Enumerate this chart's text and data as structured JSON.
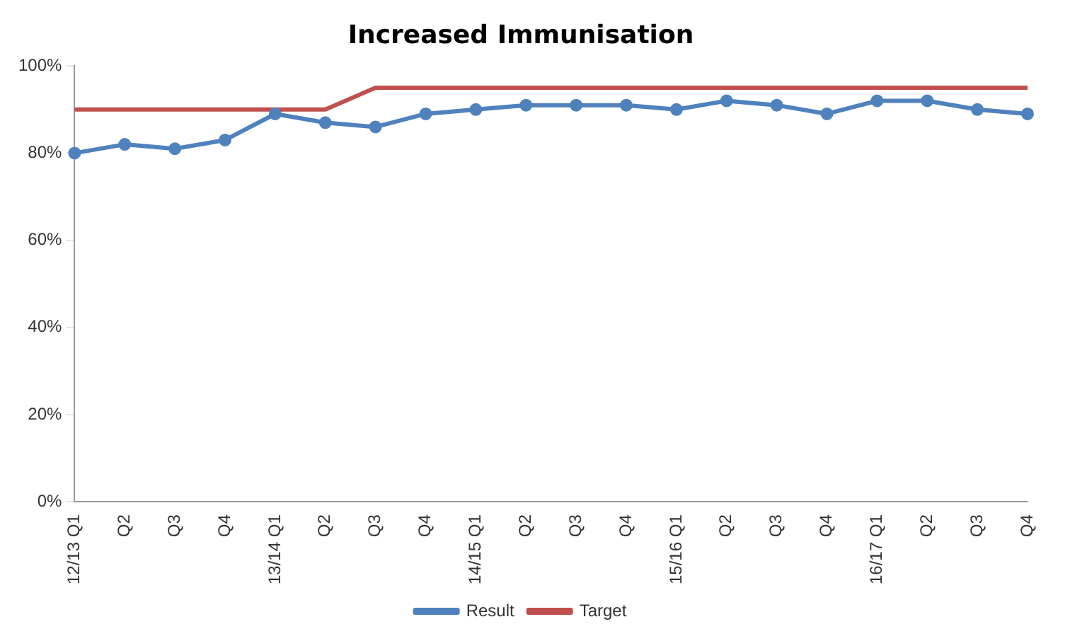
{
  "chart_data": {
    "type": "line",
    "title": "Increased Immunisation",
    "categories": [
      "12/13 Q1",
      "Q2",
      "Q3",
      "Q4",
      "13/14 Q1",
      "Q2",
      "Q3",
      "Q4",
      "14/15 Q1",
      "Q2",
      "Q3",
      "Q4",
      "15/16 Q1",
      "Q2",
      "Q3",
      "Q4",
      "16/17 Q1",
      "Q2",
      "Q3",
      "Q4"
    ],
    "series": [
      {
        "name": "Result",
        "color": "#4f81bd",
        "marker": "circle",
        "values": [
          80,
          82,
          81,
          83,
          89,
          87,
          86,
          89,
          90,
          91,
          91,
          91,
          90,
          92,
          91,
          89,
          92,
          92,
          90,
          89
        ]
      },
      {
        "name": "Target",
        "color": "#c0504d",
        "marker": "none",
        "values": [
          90,
          90,
          90,
          90,
          90,
          90,
          95,
          95,
          95,
          95,
          95,
          95,
          95,
          95,
          95,
          95,
          95,
          95,
          95,
          95
        ]
      }
    ],
    "ylim": [
      0,
      100
    ],
    "yticks": [
      {
        "value": 0,
        "label": "0%"
      },
      {
        "value": 20,
        "label": "20%"
      },
      {
        "value": 40,
        "label": "40%"
      },
      {
        "value": 60,
        "label": "60%"
      },
      {
        "value": 80,
        "label": "80%"
      },
      {
        "value": 100,
        "label": "100%"
      }
    ],
    "grid": false,
    "legend": "bottom",
    "line_style": "solid"
  }
}
